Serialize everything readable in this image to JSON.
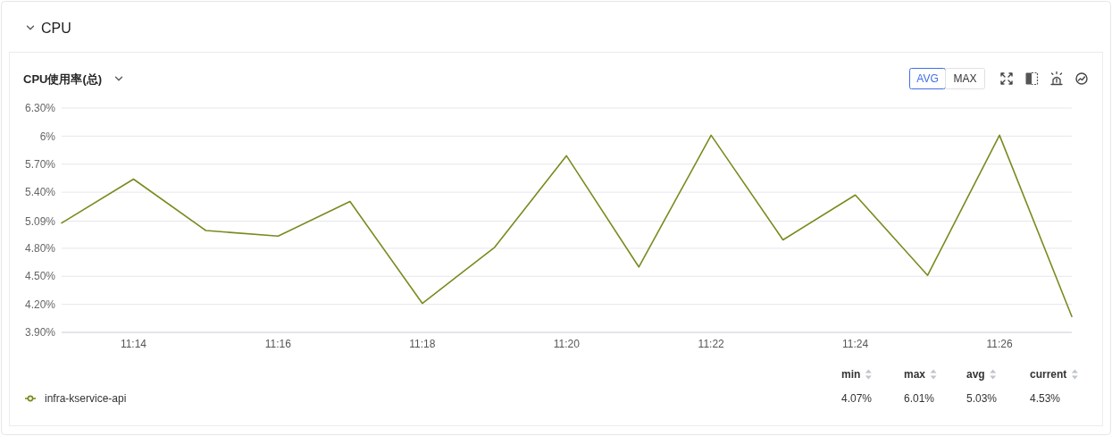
{
  "chart_data": {
    "type": "line",
    "title": "CPU",
    "subtitle": "CPU使用率(总)",
    "x": [
      11.2167,
      11.2333,
      11.25,
      11.2667,
      11.2833,
      11.3,
      11.3167,
      11.3333,
      11.35,
      11.3667,
      11.3833,
      11.4,
      11.4167,
      11.4333,
      11.45
    ],
    "series": [
      {
        "name": "infra-kservice-api",
        "color": "#7a8a1e",
        "values": [
          5.07,
          5.54,
          4.99,
          4.93,
          5.3,
          4.21,
          4.81,
          5.79,
          4.6,
          6.01,
          4.89,
          5.37,
          4.51,
          6.01,
          4.07
        ]
      }
    ],
    "xlim": [
      11.2167,
      11.45
    ],
    "xticks": [
      {
        "value": 11.2333,
        "label": "11:14"
      },
      {
        "value": 11.2667,
        "label": "11:16"
      },
      {
        "value": 11.3,
        "label": "11:18"
      },
      {
        "value": 11.3333,
        "label": "11:20"
      },
      {
        "value": 11.3667,
        "label": "11:22"
      },
      {
        "value": 11.4,
        "label": "11:24"
      },
      {
        "value": 11.4333,
        "label": "11:26"
      }
    ],
    "ylim": [
      3.9,
      6.3
    ],
    "yticks": [
      {
        "value": 3.9,
        "label": "3.90%"
      },
      {
        "value": 4.2,
        "label": "4.20%"
      },
      {
        "value": 4.5,
        "label": "4.50%"
      },
      {
        "value": 4.8,
        "label": "4.80%"
      },
      {
        "value": 5.09,
        "label": "5.09%"
      },
      {
        "value": 5.4,
        "label": "5.40%"
      },
      {
        "value": 5.7,
        "label": "5.70%"
      },
      {
        "value": 6,
        "label": "6%"
      },
      {
        "value": 6.3,
        "label": "6.30%"
      }
    ],
    "grid": "y",
    "legend": "bottom",
    "annotations": [
      "AVG",
      "MAX",
      "min",
      "max",
      "avg",
      "current",
      "4.07%",
      "6.01%",
      "5.03%",
      "4.53%"
    ]
  }
}
